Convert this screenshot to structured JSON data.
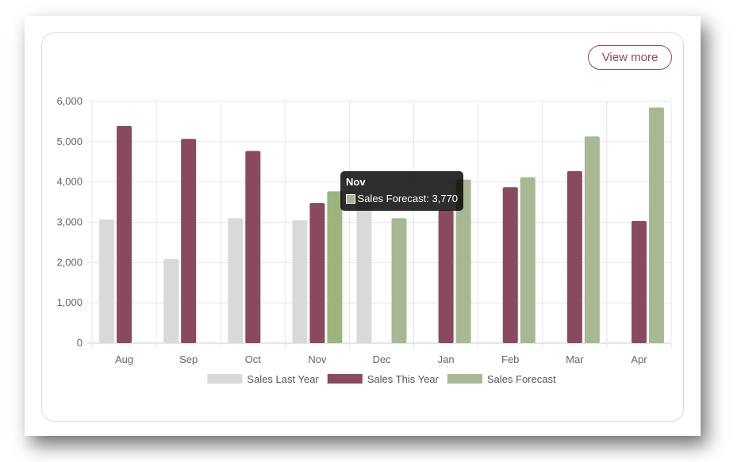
{
  "button": {
    "view_more": "View more"
  },
  "colors": {
    "sales_last_year": "#d9d9d9",
    "sales_this_year": "#8a4a5e",
    "sales_forecast": "#a8b893",
    "sales_forecast_hover": "#9ab67e",
    "grid": "#e6e6e6",
    "axis": "#cccccc"
  },
  "tooltip": {
    "title": "Nov",
    "label": "Sales Forecast: 3,770"
  },
  "chart_data": {
    "type": "bar",
    "categories": [
      "Aug",
      "Sep",
      "Oct",
      "Nov",
      "Dec",
      "Jan",
      "Feb",
      "Mar",
      "Apr"
    ],
    "series": [
      {
        "name": "Sales Last Year",
        "color": "#d9d9d9",
        "values": [
          3070,
          2090,
          3100,
          3050,
          3550,
          null,
          null,
          null,
          null
        ]
      },
      {
        "name": "Sales This Year",
        "color": "#8a4a5e",
        "values": [
          5390,
          5070,
          4770,
          3480,
          null,
          3300,
          3870,
          4270,
          3030
        ]
      },
      {
        "name": "Sales Forecast",
        "color": "#a8b893",
        "values": [
          null,
          null,
          null,
          3770,
          3100,
          4060,
          4120,
          5130,
          5850
        ]
      }
    ],
    "ylim": [
      0,
      6000
    ],
    "yticks": [
      "0",
      "1,000",
      "2,000",
      "3,000",
      "4,000",
      "5,000",
      "6,000"
    ],
    "grid": true,
    "legend": "bottom",
    "highlighted": {
      "series": "Sales Forecast",
      "category": "Nov"
    }
  }
}
